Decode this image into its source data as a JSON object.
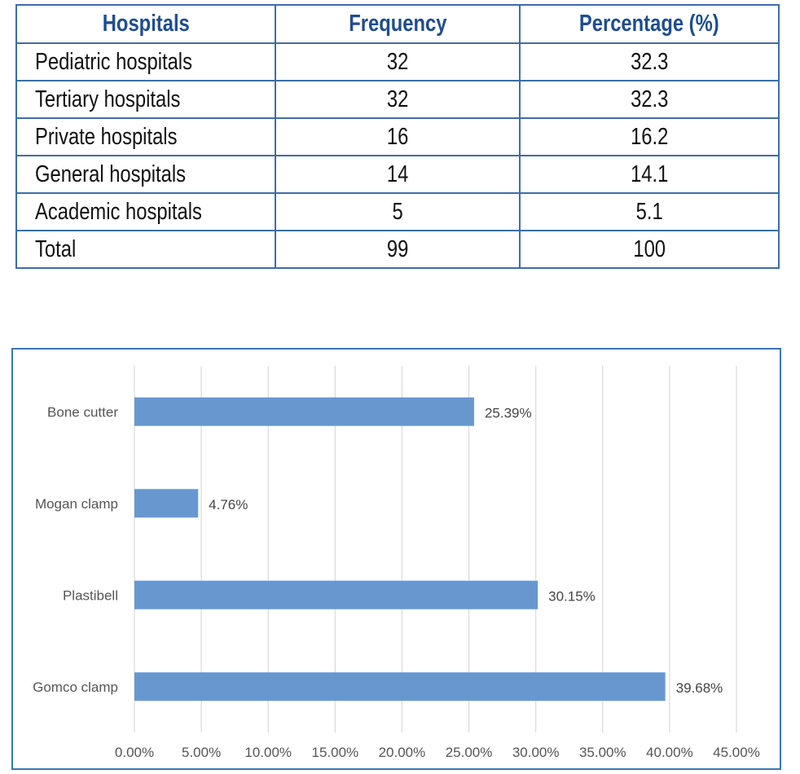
{
  "table": {
    "headers": [
      "Hospitals",
      "Frequency",
      "Percentage (%)"
    ],
    "rows": [
      {
        "name": "Pediatric hospitals",
        "frequency": "32",
        "percentage": "32.3"
      },
      {
        "name": "Tertiary hospitals",
        "frequency": "32",
        "percentage": "32.3"
      },
      {
        "name": "Private hospitals",
        "frequency": "16",
        "percentage": "16.2"
      },
      {
        "name": "General hospitals",
        "frequency": "14",
        "percentage": "14.1"
      },
      {
        "name": "Academic hospitals",
        "frequency": "5",
        "percentage": "5.1"
      },
      {
        "name": "Total",
        "frequency": "99",
        "percentage": "100"
      }
    ],
    "header_color": "#1f4d8f",
    "border_color": "#3b6ea8"
  },
  "chart_data": {
    "type": "bar",
    "orientation": "horizontal",
    "categories": [
      "Bone cutter",
      "Mogan clamp",
      "Plastibell",
      "Gomco clamp"
    ],
    "values": [
      25.39,
      4.76,
      30.15,
      39.68
    ],
    "value_labels": [
      "25.39%",
      "4.76%",
      "30.15%",
      "39.68%"
    ],
    "xlim": [
      0,
      45
    ],
    "xticks": [
      "0.00%",
      "5.00%",
      "10.00%",
      "15.00%",
      "20.00%",
      "25.00%",
      "30.00%",
      "35.00%",
      "40.00%",
      "45.00%"
    ],
    "grid": true,
    "legend": false,
    "bar_color": "#6897d0",
    "frame_color": "#3b77b2"
  }
}
